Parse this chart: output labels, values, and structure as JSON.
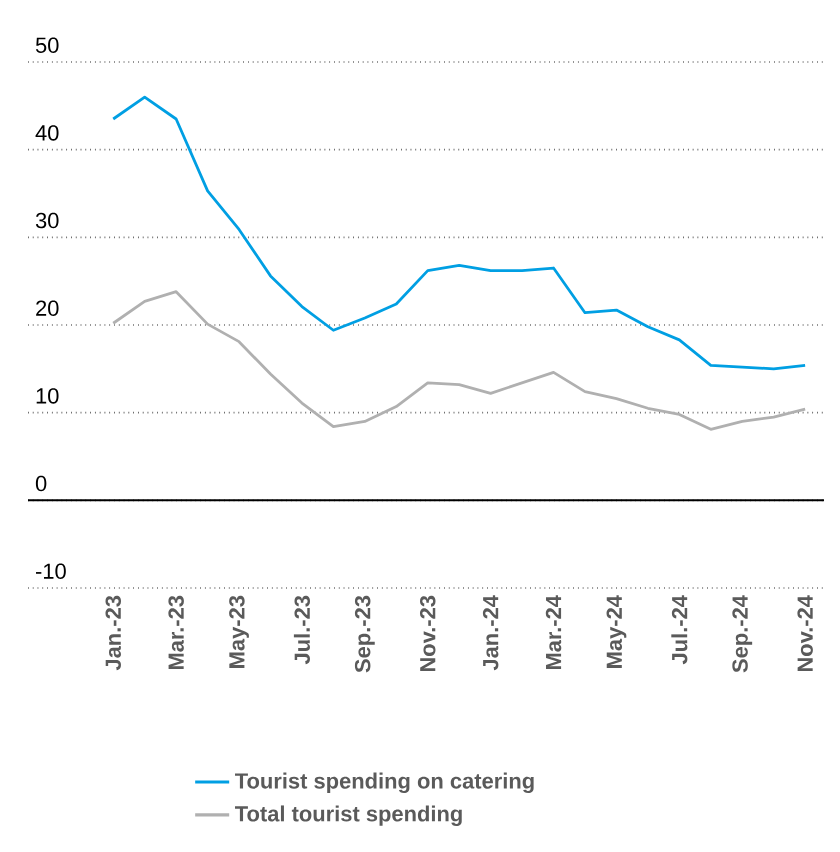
{
  "chart_data": {
    "type": "line",
    "categories": [
      "Jan.-23",
      null,
      "Mar.-23",
      null,
      "May-23",
      null,
      "Jul.-23",
      null,
      "Sep.-23",
      null,
      "Nov.-23",
      null,
      "Jan.-24",
      null,
      "Mar.-24",
      null,
      "May-24",
      null,
      "Jul.-24",
      null,
      "Sep.-24",
      null,
      "Nov.-24"
    ],
    "series": [
      {
        "name": "Tourist spending on catering",
        "color": "#009fe3",
        "values": [
          43.5,
          46.0,
          43.5,
          35.3,
          30.9,
          25.6,
          22.1,
          19.4,
          20.8,
          22.4,
          26.2,
          26.8,
          26.2,
          26.2,
          26.5,
          21.4,
          21.7,
          19.8,
          18.3,
          15.4,
          15.2,
          15.0,
          15.4
        ]
      },
      {
        "name": "Total tourist spending",
        "color": "#b0b0b0",
        "values": [
          20.2,
          22.7,
          23.8,
          20.1,
          18.1,
          14.4,
          11.1,
          8.4,
          9.0,
          10.7,
          13.4,
          13.2,
          12.2,
          13.4,
          14.6,
          12.4,
          11.6,
          10.5,
          9.8,
          8.1,
          9.0,
          9.5,
          10.4
        ]
      }
    ],
    "ylim": [
      -10,
      50
    ],
    "yticks": [
      -10,
      0,
      10,
      20,
      30,
      40,
      50
    ],
    "grid": "y",
    "legend": "bottom",
    "ref_lines": [
      {
        "axis": "y",
        "value": 0,
        "color": "#000000",
        "line_style": "solid"
      }
    ]
  }
}
